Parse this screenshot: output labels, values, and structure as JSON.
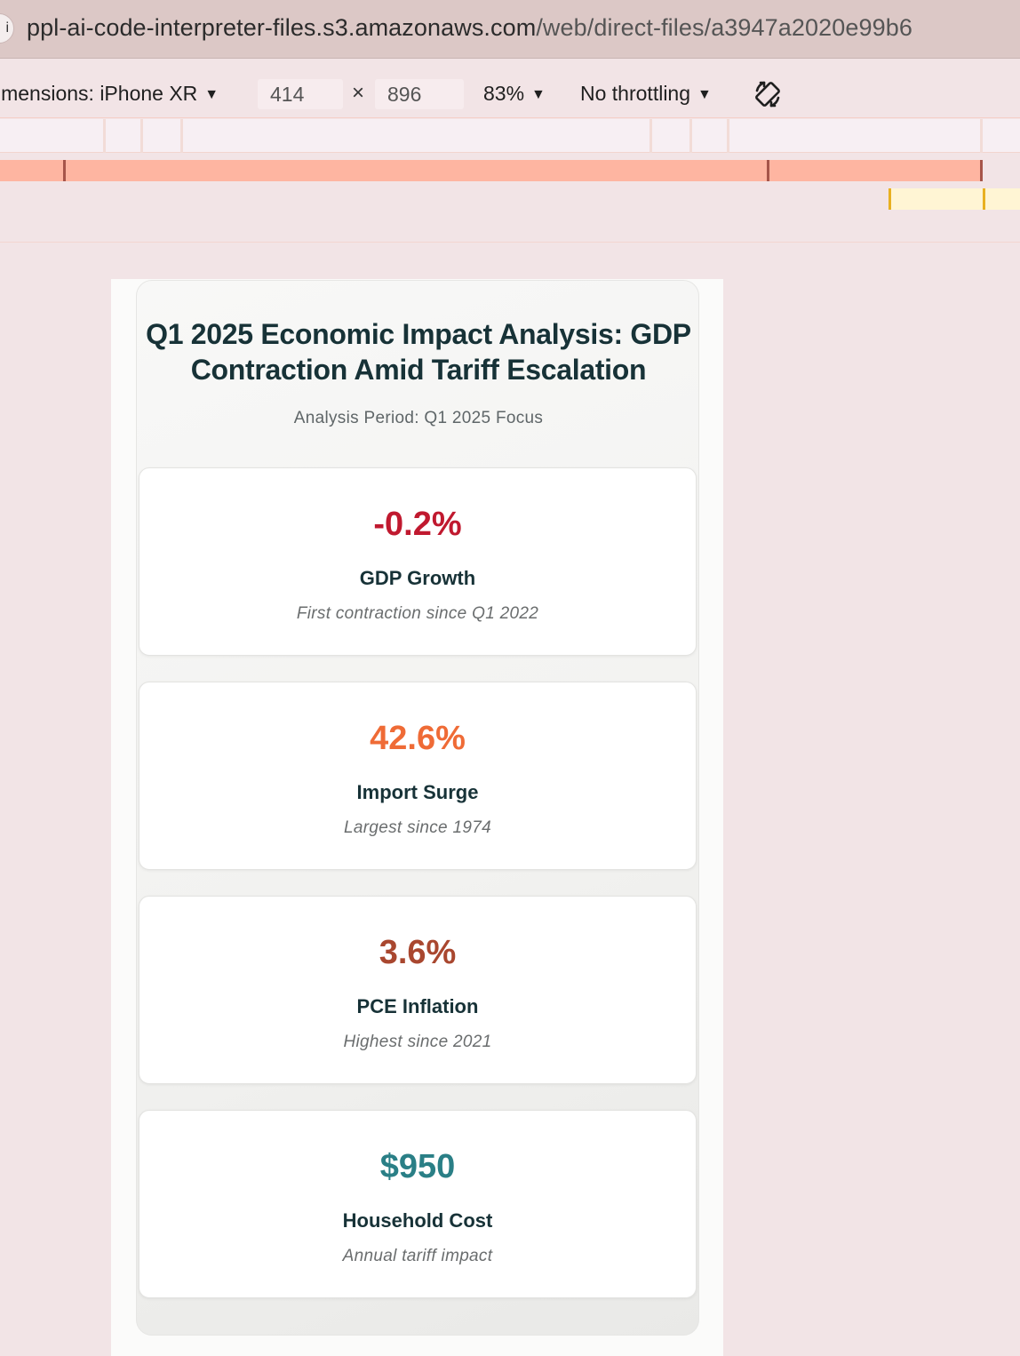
{
  "browser": {
    "url_host": "ppl-ai-code-interpreter-files.s3.amazonaws.com",
    "url_path": "/web/direct-files/a3947a2020e99b6",
    "site_icon": "info-icon"
  },
  "devtools": {
    "dimensions_label": "imensions: iPhone XR",
    "width": "414",
    "times": "×",
    "height": "896",
    "zoom": "83%",
    "throttling": "No throttling",
    "caret": "▼",
    "rotate_icon": "rotate-icon",
    "colors": {
      "max_width_bar": "#feb5a1",
      "min_width_bar": "#fff5d4",
      "tick": "#a6554a",
      "min_tick": "#e8b021"
    }
  },
  "page": {
    "title": "Q1 2025 Economic Impact Analysis: GDP Contraction Amid Tariff Escalation",
    "subtitle": "Analysis Period: Q1 2025 Focus",
    "cards": [
      {
        "value": "-0.2%",
        "label": "GDP Growth",
        "note": "First contraction since Q1 2022",
        "color": "#c0192f"
      },
      {
        "value": "42.6%",
        "label": "Import Surge",
        "note": "Largest since 1974",
        "color": "#ef6b36"
      },
      {
        "value": "3.6%",
        "label": "PCE Inflation",
        "note": "Highest since 2021",
        "color": "#a9472f"
      },
      {
        "value": "$950",
        "label": "Household Cost",
        "note": "Annual tariff impact",
        "color": "#2a7f86"
      }
    ]
  }
}
